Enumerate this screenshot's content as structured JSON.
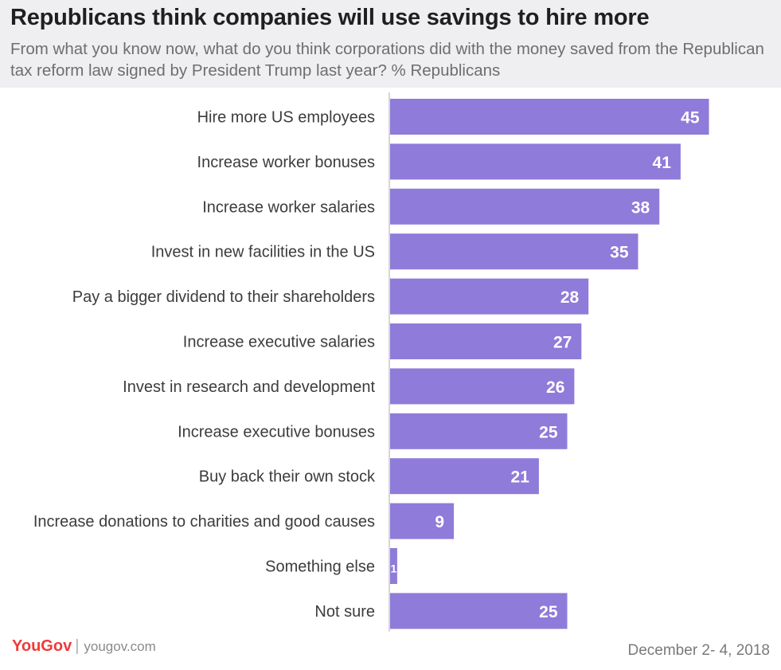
{
  "chart_data": {
    "type": "bar",
    "orientation": "horizontal",
    "title": "Republicans think companies will use savings to hire more",
    "subtitle": "From what you know now, what do you think corporations did with the money saved from the Republican tax reform law signed by President Trump last year? % Republicans",
    "categories": [
      "Hire more US employees",
      "Increase worker bonuses",
      "Increase worker salaries",
      "Invest in new facilities in the US",
      "Pay a bigger dividend to their shareholders",
      "Increase executive salaries",
      "Invest in research and development",
      "Increase executive bonuses",
      "Buy back their own stock",
      "Increase donations to charities and good causes",
      "Something else",
      "Not sure"
    ],
    "values": [
      45,
      41,
      38,
      35,
      28,
      27,
      26,
      25,
      21,
      9,
      1,
      25
    ],
    "xlim": [
      0,
      50
    ],
    "grid": false,
    "legend": "none",
    "bar_color": "#8f7bd9",
    "label_color": "#ffffff"
  },
  "footer": {
    "brand": "YouGov",
    "site": "yougov.com",
    "date": "December 2- 4, 2018"
  }
}
